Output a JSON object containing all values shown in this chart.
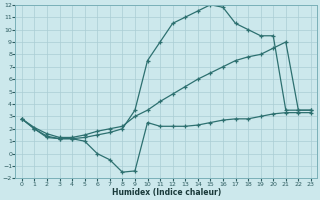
{
  "xlabel": "Humidex (Indice chaleur)",
  "bg_color": "#cce8ec",
  "grid_color": "#aacdd4",
  "line_color": "#2d7070",
  "xlim": [
    -0.5,
    23.5
  ],
  "ylim": [
    -2,
    12
  ],
  "xticks": [
    0,
    1,
    2,
    3,
    4,
    5,
    6,
    7,
    8,
    9,
    10,
    11,
    12,
    13,
    14,
    15,
    16,
    17,
    18,
    19,
    20,
    21,
    22,
    23
  ],
  "yticks": [
    -2,
    -1,
    0,
    1,
    2,
    3,
    4,
    5,
    6,
    7,
    8,
    9,
    10,
    11,
    12
  ],
  "line1_x": [
    0,
    1,
    2,
    3,
    4,
    5,
    6,
    7,
    8,
    9,
    10,
    11,
    12,
    13,
    14,
    15,
    16,
    17,
    18,
    19,
    20,
    21,
    22,
    23
  ],
  "line1_y": [
    2.8,
    2.0,
    1.4,
    1.2,
    1.2,
    1.3,
    1.5,
    1.7,
    2.0,
    3.5,
    7.5,
    9.0,
    10.5,
    11.0,
    11.5,
    12.0,
    11.8,
    10.5,
    10.0,
    9.5,
    9.5,
    3.5,
    3.5,
    3.5
  ],
  "line2_x": [
    0,
    1,
    2,
    3,
    4,
    5,
    6,
    7,
    8,
    9,
    10,
    11,
    12,
    13,
    14,
    15,
    16,
    17,
    18,
    19,
    20,
    21,
    22,
    23
  ],
  "line2_y": [
    2.8,
    2.1,
    1.6,
    1.3,
    1.3,
    1.5,
    1.8,
    2.0,
    2.2,
    3.0,
    3.5,
    4.2,
    4.8,
    5.4,
    6.0,
    6.5,
    7.0,
    7.5,
    7.8,
    8.0,
    8.5,
    9.0,
    3.5,
    3.5
  ],
  "line3_x": [
    0,
    1,
    2,
    3,
    4,
    5,
    6,
    7,
    8,
    9,
    10,
    11,
    12,
    13,
    14,
    15,
    16,
    17,
    18,
    19,
    20,
    21,
    22,
    23
  ],
  "line3_y": [
    2.8,
    2.0,
    1.3,
    1.2,
    1.2,
    1.0,
    0.0,
    -0.5,
    -1.5,
    -1.4,
    2.5,
    2.2,
    2.2,
    2.2,
    2.3,
    2.5,
    2.7,
    2.8,
    2.8,
    3.0,
    3.2,
    3.3,
    3.3,
    3.3
  ]
}
